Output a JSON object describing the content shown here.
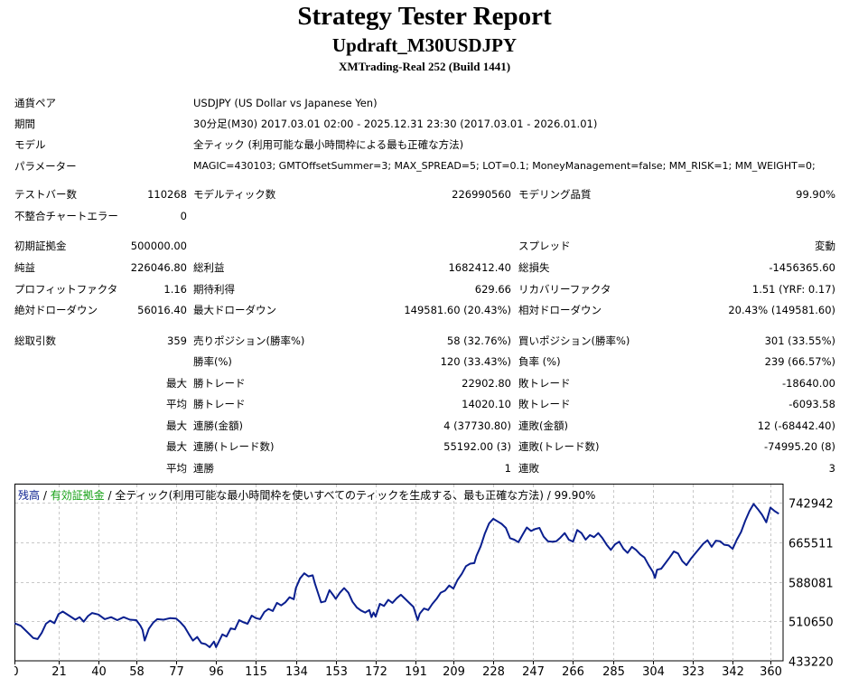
{
  "header": {
    "title": "Strategy Tester Report",
    "subtitle": "Updraft_M30USDJPY",
    "server": "XMTrading-Real 252 (Build 1441)"
  },
  "info": {
    "symbol_label": "通貨ペア",
    "symbol_value": "USDJPY (US Dollar vs Japanese Yen)",
    "period_label": "期間",
    "period_value": "30分足(M30) 2017.03.01 02:00 - 2025.12.31 23:30 (2017.03.01 - 2026.01.01)",
    "model_label": "モデル",
    "model_value": "全ティック (利用可能な最小時間枠による最も正確な方法)",
    "params_label": "パラメーター",
    "params_value": "MAGIC=430103; GMTOffsetSummer=3; MAX_SPREAD=5; LOT=0.1; MoneyManagement=false; MM_RISK=1; MM_WEIGHT=0;"
  },
  "stats": {
    "bars_label": "テストバー数",
    "bars_value": "110268",
    "ticks_label": "モデルティック数",
    "ticks_value": "226990560",
    "quality_label": "モデリング品質",
    "quality_value": "99.90%",
    "mismatch_label": "不整合チャートエラー",
    "mismatch_value": "0",
    "deposit_label": "初期証拠金",
    "deposit_value": "500000.00",
    "spread_label": "スプレッド",
    "spread_value": "変動",
    "net_label": "純益",
    "net_value": "226046.80",
    "gross_profit_label": "総利益",
    "gross_profit_value": "1682412.40",
    "gross_loss_label": "総損失",
    "gross_loss_value": "-1456365.60",
    "pf_label": "プロフィットファクタ",
    "pf_value": "1.16",
    "expected_label": "期待利得",
    "expected_value": "629.66",
    "recovery_label": "リカバリーファクタ",
    "recovery_value": "1.51 (YRF: 0.17)",
    "abs_dd_label": "絶対ドローダウン",
    "abs_dd_value": "56016.40",
    "max_dd_label": "最大ドローダウン",
    "max_dd_value": "149581.60 (20.43%)",
    "rel_dd_label": "相対ドローダウン",
    "rel_dd_value": "20.43% (149581.60)",
    "trades_label": "総取引数",
    "trades_value": "359",
    "short_label": "売りポジション(勝率%)",
    "short_value": "58 (32.76%)",
    "long_label": "買いポジション(勝率%)",
    "long_value": "301 (33.55%)",
    "win_pct_label": "勝率(%)",
    "win_pct_value": "120 (33.43%)",
    "loss_pct_label": "負率 (%)",
    "loss_pct_value": "239 (66.57%)",
    "max_word": "最大",
    "avg_word": "平均",
    "largest_win_label": "勝トレード",
    "largest_win_value": "22902.80",
    "largest_loss_label": "敗トレード",
    "largest_loss_value": "-18640.00",
    "avg_win_label": "勝トレード",
    "avg_win_value": "14020.10",
    "avg_loss_label": "敗トレード",
    "avg_loss_value": "-6093.58",
    "cons_wins_money_label": "連勝(金額)",
    "cons_wins_money_value": "4 (37730.80)",
    "cons_losses_money_label": "連敗(金額)",
    "cons_losses_money_value": "12 (-68442.40)",
    "cons_profit_label": "連勝(トレード数)",
    "cons_profit_value": "55192.00 (3)",
    "cons_loss_label": "連敗(トレード数)",
    "cons_loss_value": "-74995.20 (8)",
    "avg_cons_wins_label": "連勝",
    "avg_cons_wins_value": "1",
    "avg_cons_losses_label": "連敗",
    "avg_cons_losses_value": "3"
  },
  "chart_data": {
    "type": "line",
    "legend": {
      "balance": "残高",
      "sep1": " / ",
      "equity": "有効証拠金",
      "sep2": " / ",
      "desc": "全ティック(利用可能な最小時間枠を使いすべてのティックを生成する、最も正確な方法) / 99.90%"
    },
    "colors": {
      "line": "#0a1f8f",
      "balance_label": "#0a1f8f",
      "equity_label": "#14a014",
      "grid": "#c8c8c8"
    },
    "grid": true,
    "xlim": [
      0,
      366
    ],
    "ylim": [
      433220,
      781000
    ],
    "x_ticks": [
      0,
      21,
      40,
      58,
      77,
      96,
      115,
      134,
      153,
      172,
      191,
      209,
      228,
      247,
      266,
      285,
      304,
      323,
      342,
      360
    ],
    "y_ticks": [
      742942,
      665511,
      588081,
      510650,
      433220
    ],
    "series": [
      {
        "points": [
          [
            0,
            507000
          ],
          [
            3,
            502000
          ],
          [
            6,
            490000
          ],
          [
            9,
            478000
          ],
          [
            11,
            476000
          ],
          [
            13,
            488000
          ],
          [
            15,
            506000
          ],
          [
            17,
            512000
          ],
          [
            19,
            507000
          ],
          [
            21,
            525000
          ],
          [
            23,
            530000
          ],
          [
            26,
            522000
          ],
          [
            29,
            514000
          ],
          [
            31,
            519000
          ],
          [
            33,
            510000
          ],
          [
            35,
            521000
          ],
          [
            37,
            527000
          ],
          [
            40,
            524000
          ],
          [
            43,
            515000
          ],
          [
            46,
            519000
          ],
          [
            49,
            513000
          ],
          [
            52,
            519000
          ],
          [
            55,
            514000
          ],
          [
            58,
            513000
          ],
          [
            60,
            502000
          ],
          [
            61,
            494000
          ],
          [
            62,
            473000
          ],
          [
            64,
            496000
          ],
          [
            66,
            508000
          ],
          [
            68,
            515000
          ],
          [
            71,
            514000
          ],
          [
            74,
            517000
          ],
          [
            77,
            516000
          ],
          [
            79,
            509000
          ],
          [
            81,
            500000
          ],
          [
            83,
            486000
          ],
          [
            85,
            473000
          ],
          [
            87,
            480000
          ],
          [
            89,
            468000
          ],
          [
            91,
            466000
          ],
          [
            93,
            460000
          ],
          [
            95,
            471000
          ],
          [
            96,
            460000
          ],
          [
            97,
            468000
          ],
          [
            99,
            485000
          ],
          [
            101,
            481000
          ],
          [
            103,
            497000
          ],
          [
            105,
            495000
          ],
          [
            107,
            513000
          ],
          [
            109,
            509000
          ],
          [
            111,
            506000
          ],
          [
            113,
            522000
          ],
          [
            115,
            517000
          ],
          [
            117,
            515000
          ],
          [
            119,
            529000
          ],
          [
            121,
            535000
          ],
          [
            123,
            531000
          ],
          [
            125,
            547000
          ],
          [
            127,
            542000
          ],
          [
            129,
            548000
          ],
          [
            131,
            558000
          ],
          [
            133,
            554000
          ],
          [
            134,
            576000
          ],
          [
            136,
            595000
          ],
          [
            138,
            605000
          ],
          [
            140,
            599000
          ],
          [
            142,
            601000
          ],
          [
            143,
            586000
          ],
          [
            145,
            561000
          ],
          [
            146,
            548000
          ],
          [
            148,
            550000
          ],
          [
            150,
            572000
          ],
          [
            152,
            561000
          ],
          [
            153,
            555000
          ],
          [
            155,
            567000
          ],
          [
            157,
            576000
          ],
          [
            159,
            567000
          ],
          [
            161,
            549000
          ],
          [
            163,
            538000
          ],
          [
            165,
            532000
          ],
          [
            167,
            528000
          ],
          [
            169,
            533000
          ],
          [
            170,
            519000
          ],
          [
            171,
            528000
          ],
          [
            172,
            520000
          ],
          [
            174,
            545000
          ],
          [
            176,
            541000
          ],
          [
            178,
            553000
          ],
          [
            180,
            547000
          ],
          [
            182,
            556000
          ],
          [
            184,
            563000
          ],
          [
            186,
            555000
          ],
          [
            188,
            547000
          ],
          [
            190,
            539000
          ],
          [
            191,
            526000
          ],
          [
            192,
            513000
          ],
          [
            193,
            526000
          ],
          [
            195,
            536000
          ],
          [
            197,
            533000
          ],
          [
            199,
            545000
          ],
          [
            201,
            555000
          ],
          [
            203,
            567000
          ],
          [
            205,
            571000
          ],
          [
            207,
            581000
          ],
          [
            209,
            575000
          ],
          [
            211,
            592000
          ],
          [
            213,
            604000
          ],
          [
            215,
            619000
          ],
          [
            217,
            624000
          ],
          [
            219,
            625000
          ],
          [
            220,
            639000
          ],
          [
            222,
            658000
          ],
          [
            224,
            683000
          ],
          [
            226,
            703000
          ],
          [
            228,
            712000
          ],
          [
            230,
            707000
          ],
          [
            232,
            702000
          ],
          [
            234,
            694000
          ],
          [
            236,
            674000
          ],
          [
            238,
            671000
          ],
          [
            240,
            666000
          ],
          [
            242,
            681000
          ],
          [
            244,
            695000
          ],
          [
            246,
            688000
          ],
          [
            248,
            692000
          ],
          [
            250,
            694000
          ],
          [
            252,
            677000
          ],
          [
            254,
            668000
          ],
          [
            256,
            667000
          ],
          [
            258,
            668000
          ],
          [
            260,
            675000
          ],
          [
            262,
            684000
          ],
          [
            264,
            671000
          ],
          [
            266,
            667000
          ],
          [
            268,
            690000
          ],
          [
            270,
            684000
          ],
          [
            272,
            671000
          ],
          [
            274,
            680000
          ],
          [
            276,
            676000
          ],
          [
            278,
            684000
          ],
          [
            280,
            674000
          ],
          [
            282,
            661000
          ],
          [
            284,
            651000
          ],
          [
            286,
            662000
          ],
          [
            288,
            667000
          ],
          [
            290,
            653000
          ],
          [
            292,
            645000
          ],
          [
            294,
            657000
          ],
          [
            296,
            651000
          ],
          [
            298,
            642000
          ],
          [
            300,
            636000
          ],
          [
            302,
            621000
          ],
          [
            304,
            608000
          ],
          [
            305,
            596000
          ],
          [
            306,
            612000
          ],
          [
            308,
            614000
          ],
          [
            310,
            625000
          ],
          [
            312,
            636000
          ],
          [
            314,
            648000
          ],
          [
            316,
            644000
          ],
          [
            318,
            629000
          ],
          [
            320,
            621000
          ],
          [
            322,
            633000
          ],
          [
            324,
            643000
          ],
          [
            326,
            653000
          ],
          [
            328,
            663000
          ],
          [
            330,
            670000
          ],
          [
            332,
            657000
          ],
          [
            334,
            669000
          ],
          [
            336,
            668000
          ],
          [
            338,
            661000
          ],
          [
            340,
            660000
          ],
          [
            342,
            653000
          ],
          [
            344,
            671000
          ],
          [
            346,
            686000
          ],
          [
            348,
            708000
          ],
          [
            350,
            727000
          ],
          [
            352,
            741000
          ],
          [
            354,
            731000
          ],
          [
            356,
            720000
          ],
          [
            358,
            705000
          ],
          [
            360,
            734000
          ],
          [
            362,
            727000
          ],
          [
            364,
            722000
          ]
        ]
      }
    ]
  }
}
